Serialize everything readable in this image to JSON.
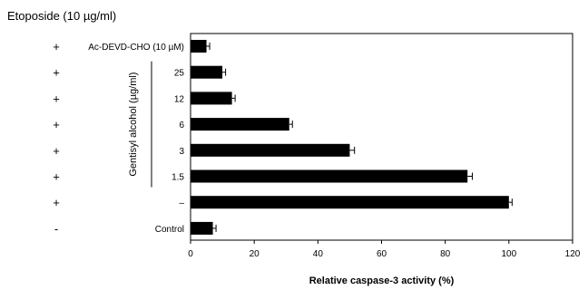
{
  "chart_data": {
    "type": "bar",
    "orientation": "horizontal",
    "title": "Etoposide (10 µg/ml)",
    "xlabel": "Relative caspase-3 activity (%)",
    "group_label": "Gentisyl alcohol (µg/ml)",
    "xlim": [
      0,
      120
    ],
    "xticks": [
      "0",
      "20",
      "40",
      "60",
      "80",
      "100",
      "120"
    ],
    "grid": false,
    "categories": [
      "Ac-DEVD-CHO (10 µM)",
      "25",
      "12",
      "6",
      "3",
      "1.5",
      "–",
      "Control"
    ],
    "etoposide": [
      "+",
      "+",
      "+",
      "+",
      "+",
      "+",
      "+",
      "-"
    ],
    "values": [
      5,
      10,
      13,
      31,
      50,
      87,
      100,
      7
    ],
    "errors": [
      1,
      1,
      1,
      1,
      1.5,
      1.5,
      1,
      1
    ],
    "bar_color": "#000000"
  }
}
